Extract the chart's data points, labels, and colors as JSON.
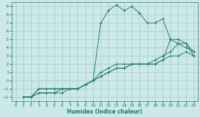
{
  "xlabel": "Humidex (Indice chaleur)",
  "ylabel": "",
  "xlim": [
    -0.5,
    23.5
  ],
  "ylim": [
    -2.5,
    9.5
  ],
  "xticks": [
    0,
    1,
    2,
    3,
    4,
    5,
    6,
    7,
    8,
    9,
    10,
    11,
    12,
    13,
    14,
    15,
    16,
    17,
    18,
    19,
    20,
    21,
    22,
    23
  ],
  "yticks": [
    -2,
    -1,
    0,
    1,
    2,
    3,
    4,
    5,
    6,
    7,
    8,
    9
  ],
  "bg_color": "#cce8e8",
  "grid_color": "#aacece",
  "line_color": "#1a7a6e",
  "lines": [
    {
      "x": [
        1,
        2,
        3,
        4,
        5,
        6,
        7,
        8,
        9,
        10,
        11,
        12,
        13,
        14,
        15,
        16,
        17,
        18,
        19,
        20,
        21,
        22,
        23
      ],
      "y": [
        -2,
        -2,
        -1,
        -1,
        -1,
        -1,
        -1,
        -1,
        -0.5,
        0,
        0.5,
        1,
        1.5,
        1.5,
        2,
        2,
        2,
        2,
        2.5,
        3,
        3,
        3.5,
        3
      ]
    },
    {
      "x": [
        1,
        2,
        3,
        4,
        5,
        6,
        7,
        8,
        9,
        10,
        11,
        12,
        13,
        14,
        15,
        16,
        17,
        18,
        19,
        20,
        21,
        22,
        23
      ],
      "y": [
        -2,
        -2,
        -1,
        -1,
        -1,
        -1,
        -1,
        -1,
        -0.5,
        0,
        0.5,
        1,
        1.5,
        1.5,
        2,
        2,
        2,
        2,
        2.5,
        5,
        4.5,
        4.5,
        3.5
      ]
    },
    {
      "x": [
        1,
        2,
        3,
        4,
        5,
        6,
        7,
        8,
        9,
        10,
        11,
        12,
        13,
        14,
        15,
        16,
        17,
        18,
        19,
        20,
        21,
        22,
        23
      ],
      "y": [
        -2,
        -2,
        -1.5,
        -1.5,
        -1.5,
        -1,
        -1,
        -1,
        -0.5,
        0,
        1,
        1.5,
        2,
        2,
        2,
        2,
        2,
        2.5,
        3,
        3.5,
        4.5,
        4,
        3.5
      ]
    },
    {
      "x": [
        1,
        2,
        3,
        4,
        5,
        6,
        7,
        8,
        9,
        10,
        11,
        12,
        13,
        14,
        15,
        16,
        17,
        18,
        19,
        20,
        21,
        22,
        23
      ],
      "y": [
        -2,
        -2,
        -1.5,
        -1.5,
        -1.5,
        -1.5,
        -1,
        -1,
        -0.5,
        0,
        7,
        8.5,
        9.2,
        8.5,
        9,
        8.2,
        7,
        7,
        7.5,
        5,
        5,
        4.5,
        3
      ]
    }
  ]
}
